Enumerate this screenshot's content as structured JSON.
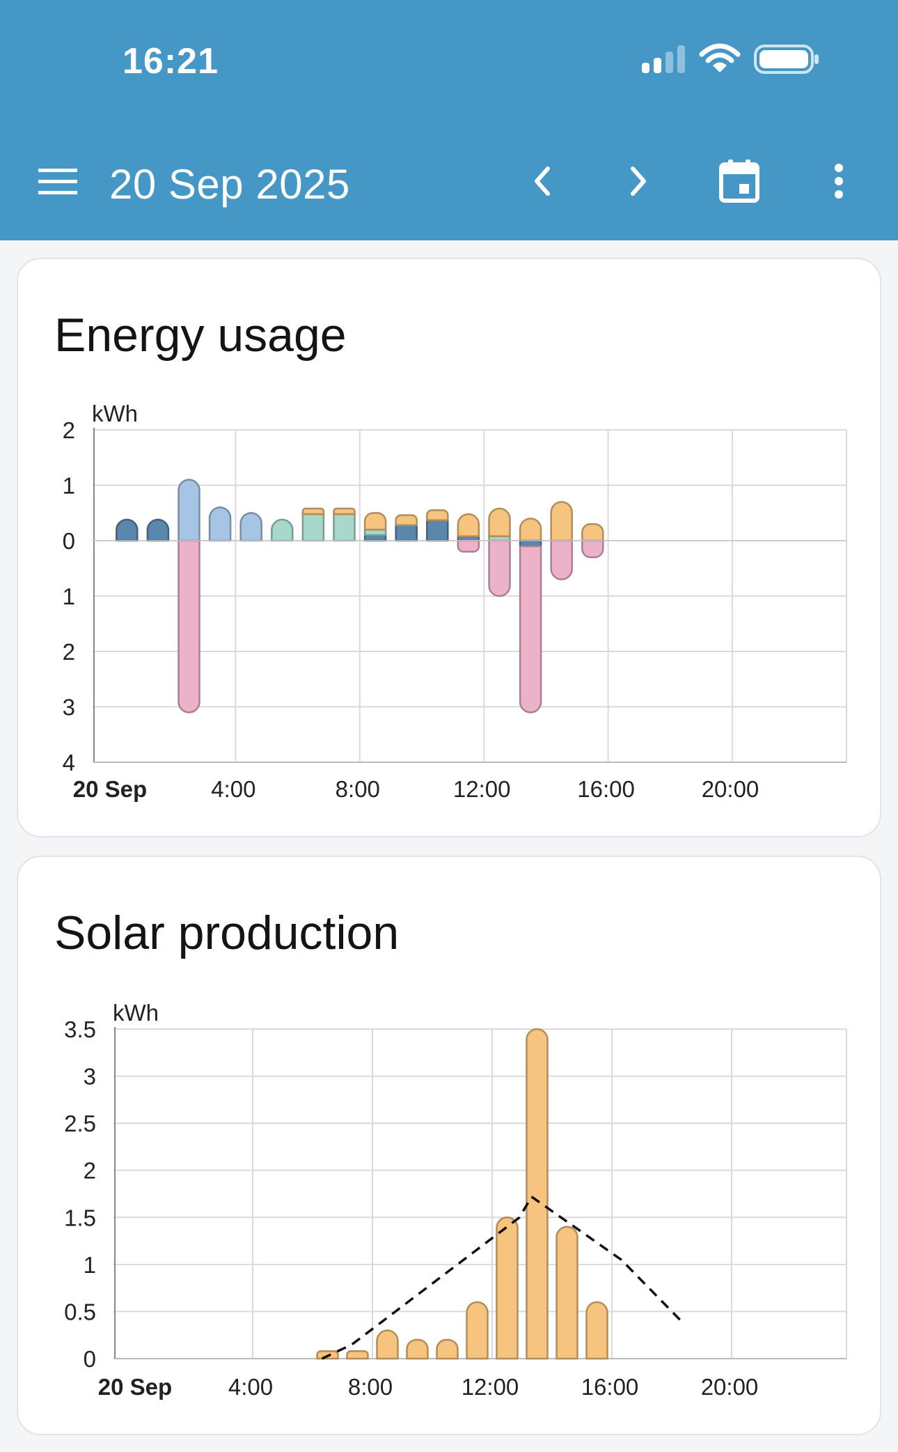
{
  "status_bar": {
    "time": "16:21"
  },
  "app_bar": {
    "date_title": "20 Sep 2025"
  },
  "colors": {
    "header_bg": "#4597c6",
    "grid_import": "#5b87ad",
    "home_usage": "#a6c4e3",
    "battery": "#a8d8cc",
    "solar": "#f6c47e",
    "grid_export": "#ecb2c9"
  },
  "energy_card": {
    "title": "Energy usage",
    "chart_data": {
      "type": "bar",
      "stacked": true,
      "unit_label": "kWh",
      "ylim": [
        -4,
        2
      ],
      "y_ticks": [
        2,
        1,
        0,
        -1,
        -2,
        -3,
        -4
      ],
      "y_tick_labels": [
        "2",
        "1",
        "0",
        "1",
        "2",
        "3",
        "4"
      ],
      "x_ticks": [
        0,
        4,
        8,
        12,
        16,
        20
      ],
      "x_tick_labels": [
        "20 Sep",
        "4:00",
        "8:00",
        "12:00",
        "16:00",
        "20:00"
      ],
      "x": [
        0,
        1,
        2,
        3,
        4,
        5,
        6,
        7,
        8,
        9,
        10,
        11,
        12,
        13,
        14,
        15
      ],
      "series": [
        {
          "color_key": "grid_import",
          "values": [
            0.38,
            0.38,
            0,
            0,
            0,
            0,
            0,
            0,
            0.1,
            0.28,
            0.37,
            0.08,
            0,
            -0.1,
            0,
            0
          ]
        },
        {
          "color_key": "home_usage",
          "values": [
            0,
            0,
            1.1,
            0.6,
            0.5,
            0,
            0,
            0,
            0,
            0,
            0,
            0,
            0,
            0,
            0,
            0
          ]
        },
        {
          "color_key": "battery",
          "values": [
            0,
            0,
            0,
            0,
            0,
            0.38,
            0.48,
            0.48,
            0.1,
            0,
            0,
            0,
            0.08,
            0,
            0,
            0
          ]
        },
        {
          "color_key": "solar",
          "values": [
            0,
            0,
            0,
            0,
            0,
            0,
            0.1,
            0.1,
            0.3,
            0.18,
            0.18,
            0.4,
            0.5,
            0.4,
            0.7,
            0.3
          ]
        },
        {
          "color_key": "grid_export",
          "values": [
            0,
            0,
            -3.1,
            0,
            0,
            0,
            0,
            0,
            0,
            0,
            0,
            -0.2,
            -1.0,
            -3.0,
            -0.7,
            -0.3
          ]
        }
      ]
    }
  },
  "solar_card": {
    "title": "Solar production",
    "chart_data": {
      "type": "bar",
      "unit_label": "kWh",
      "ylim": [
        0,
        3.5
      ],
      "y_ticks": [
        3.5,
        3,
        2.5,
        2,
        1.5,
        1,
        0.5,
        0
      ],
      "y_tick_labels": [
        "3.5",
        "3",
        "2.5",
        "2",
        "1.5",
        "1",
        "0.5",
        "0"
      ],
      "x_ticks": [
        0,
        4,
        8,
        12,
        16,
        20
      ],
      "x_tick_labels": [
        "20 Sep",
        "4:00",
        "8:00",
        "12:00",
        "16:00",
        "20:00"
      ],
      "bars": {
        "color_key": "solar",
        "x": [
          6,
          7,
          8,
          9,
          10,
          11,
          12,
          13,
          14,
          15
        ],
        "values": [
          0.08,
          0.08,
          0.3,
          0.2,
          0.2,
          0.6,
          1.5,
          3.5,
          1.4,
          0.6
        ]
      },
      "forecast": {
        "style": "dashed",
        "x": [
          6,
          7,
          12.6,
          13,
          16,
          18
        ],
        "values": [
          0,
          0.15,
          1.5,
          1.72,
          1.05,
          0.4
        ]
      }
    }
  }
}
